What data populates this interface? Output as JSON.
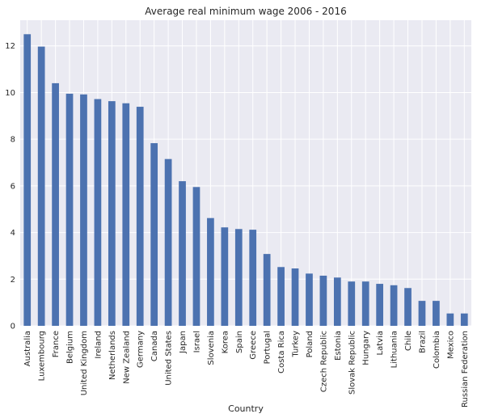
{
  "chart_data": {
    "type": "bar",
    "title": "Average real minimum wage 2006 - 2016",
    "xlabel": "Country",
    "ylabel": "",
    "ylim": [
      0,
      13.1
    ],
    "yticks": [
      0,
      2,
      4,
      6,
      8,
      10,
      12
    ],
    "grid": true,
    "legend": "none",
    "colors": {
      "bar": "#4c72b0",
      "plot_background": "#eaeaf2",
      "grid": "#ffffff"
    },
    "categories": [
      "Australia",
      "Luxembourg",
      "France",
      "Belgium",
      "United Kingdom",
      "Ireland",
      "Netherlands",
      "New Zealand",
      "Germany",
      "Canada",
      "United States",
      "Japan",
      "Israel",
      "Slovenia",
      "Korea",
      "Spain",
      "Greece",
      "Portugal",
      "Costa Rica",
      "Turkey",
      "Poland",
      "Czech Republic",
      "Estonia",
      "Slovak Republic",
      "Hungary",
      "Latvia",
      "Lithuania",
      "Chile",
      "Brazil",
      "Colombia",
      "Mexico",
      "Russian Federation"
    ],
    "values": [
      12.5,
      11.97,
      10.4,
      9.95,
      9.92,
      9.72,
      9.63,
      9.54,
      9.39,
      7.83,
      7.15,
      6.2,
      5.95,
      4.62,
      4.22,
      4.15,
      4.12,
      3.08,
      2.52,
      2.46,
      2.24,
      2.15,
      2.07,
      1.9,
      1.9,
      1.8,
      1.74,
      1.62,
      1.07,
      1.07,
      0.53,
      0.53
    ]
  }
}
